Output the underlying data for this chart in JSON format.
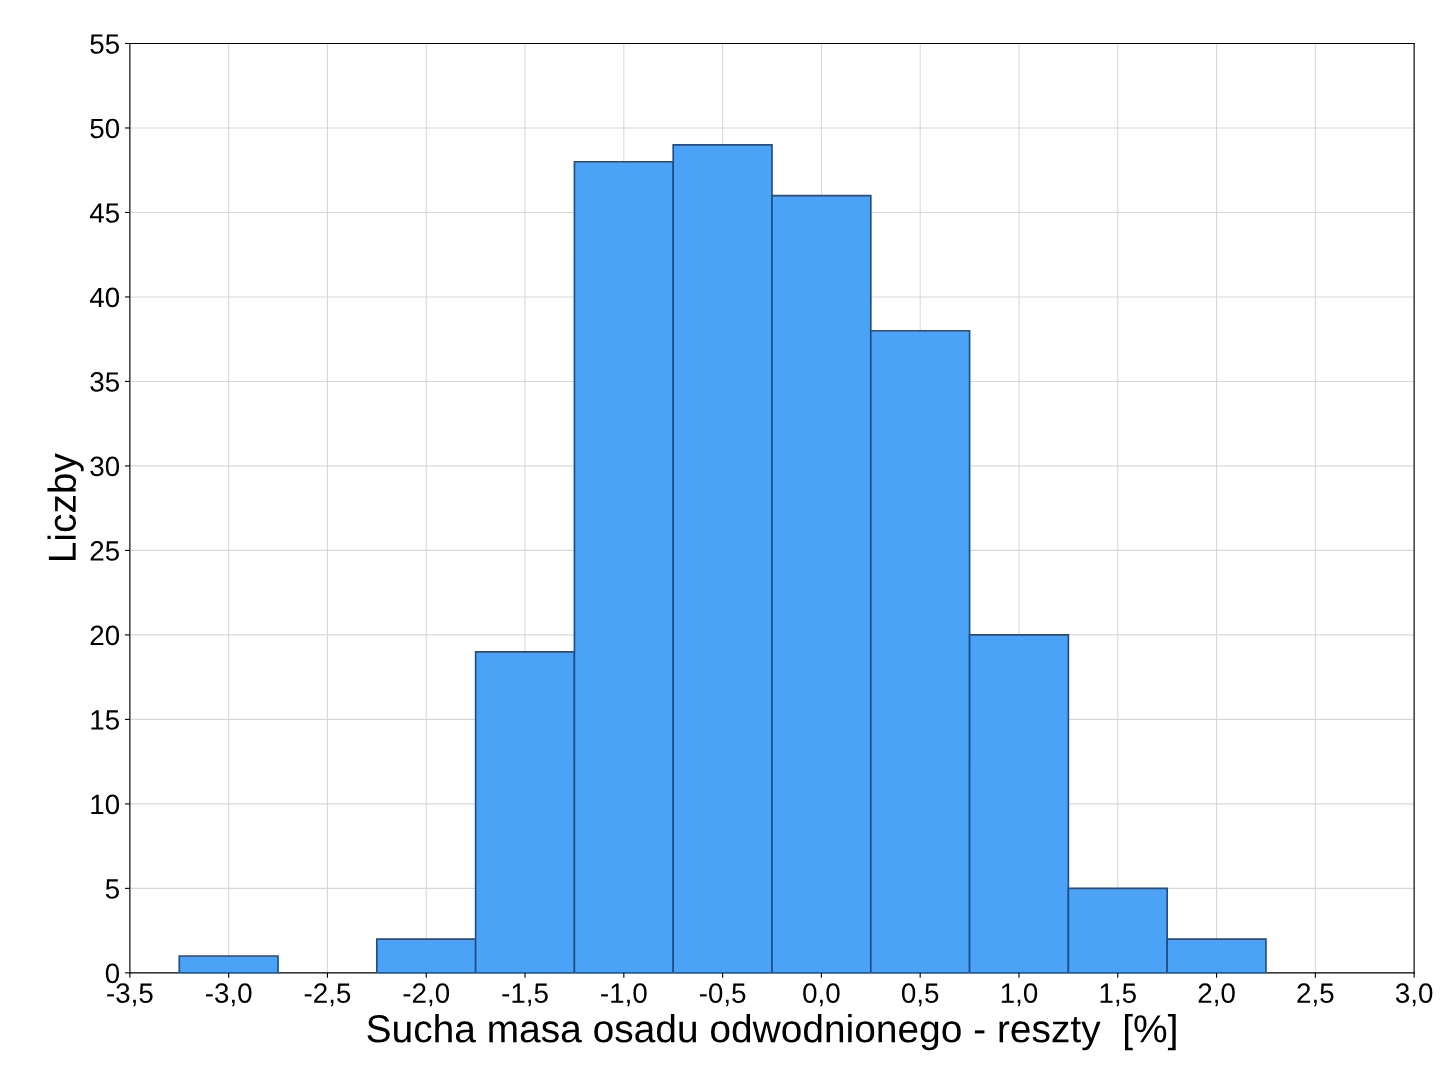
{
  "chart_data": {
    "type": "histogram",
    "xlabel": "Sucha masa osadu odwodnionego - reszty  [%]",
    "ylabel": "Liczby",
    "bins": [
      -3.25,
      -2.75,
      -2.25,
      -1.75,
      -1.25,
      -0.75,
      -0.25,
      0.25,
      0.75,
      1.25,
      1.75,
      2.25
    ],
    "values": [
      1,
      0,
      2,
      19,
      48,
      49,
      46,
      38,
      20,
      5,
      2
    ],
    "color": "#4aa3f7",
    "xlim": [
      -3.5,
      3.0
    ],
    "xticks": [
      {
        "value": -3.5,
        "label": "-3,5"
      },
      {
        "value": -3.0,
        "label": "-3,0"
      },
      {
        "value": -2.5,
        "label": "-2,5"
      },
      {
        "value": -2.0,
        "label": "-2,0"
      },
      {
        "value": -1.5,
        "label": "-1,5"
      },
      {
        "value": -1.0,
        "label": "-1,0"
      },
      {
        "value": -0.5,
        "label": "-0,5"
      },
      {
        "value": 0.0,
        "label": "0,0"
      },
      {
        "value": 0.5,
        "label": "0,5"
      },
      {
        "value": 1.0,
        "label": "1,0"
      },
      {
        "value": 1.5,
        "label": "1,5"
      },
      {
        "value": 2.0,
        "label": "2,0"
      },
      {
        "value": 2.5,
        "label": "2,5"
      },
      {
        "value": 3.0,
        "label": "3,0"
      }
    ],
    "ylim": [
      0,
      55
    ],
    "yticks": [
      0,
      5,
      10,
      15,
      20,
      25,
      30,
      35,
      40,
      45,
      50,
      55
    ],
    "grid": true
  }
}
